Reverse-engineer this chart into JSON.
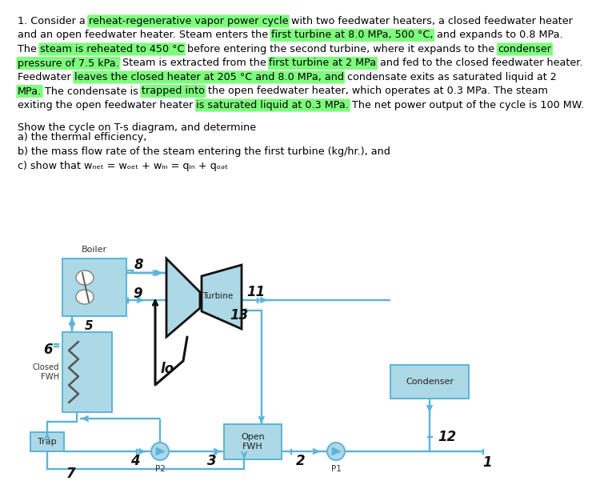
{
  "bg": "#ffffff",
  "highlight": "#7dff7d",
  "blue_fill": "#add8e6",
  "blue_edge": "#5ab4d8",
  "dark": "#111111",
  "text_fs": 9.2,
  "lines": [
    [
      [
        "1. Consider a ",
        false
      ],
      [
        "reheat-regenerative vapor power cycle",
        true
      ],
      [
        " with two feedwater heaters, a closed feedwater heater",
        false
      ]
    ],
    [
      [
        "and an open feedwater heater. Steam enters the ",
        false
      ],
      [
        "first turbine at 8.0 MPa, 500 °C,",
        true
      ],
      [
        " and expands to 0.8 MPa.",
        false
      ]
    ],
    [
      [
        "The ",
        false
      ],
      [
        "steam is reheated to 450 °C",
        true
      ],
      [
        " before entering the second turbine, where it expands to the ",
        false
      ],
      [
        "condenser",
        true
      ]
    ],
    [
      [
        "pressure of 7.5 kPa.",
        true
      ],
      [
        " Steam is extracted from the ",
        false
      ],
      [
        "first turbine at 2 MPa",
        true
      ],
      [
        " and fed to the closed feedwater heater.",
        false
      ]
    ],
    [
      [
        "Feedwater ",
        false
      ],
      [
        "leaves the closed heater at 205 °C and 8.0 MPa, and",
        true
      ],
      [
        " condensate exits as saturated liquid at 2",
        false
      ]
    ],
    [
      [
        "MPa.",
        true
      ],
      [
        " The condensate is ",
        false
      ],
      [
        "trapped into",
        true
      ],
      [
        " the open feedwater heater, which operates at 0.3 MPa. The steam",
        false
      ]
    ],
    [
      [
        "exiting the open feedwater heater ",
        false
      ],
      [
        "is saturated liquid at 0.3 MPa.",
        true
      ],
      [
        " The net power output of the cycle is 100 MW.",
        false
      ]
    ]
  ],
  "q_lines": [
    "Show the cycle on T-s diagram, and determine",
    "a) the thermal efficiency,",
    "b) the mass flow rate of the steam entering the first turbine (kg/hr.), and",
    "c) show that wₙₑₜ = wₒₑₜ + wᵢₙ = qᵢₙ + qₒₔₜ"
  ]
}
